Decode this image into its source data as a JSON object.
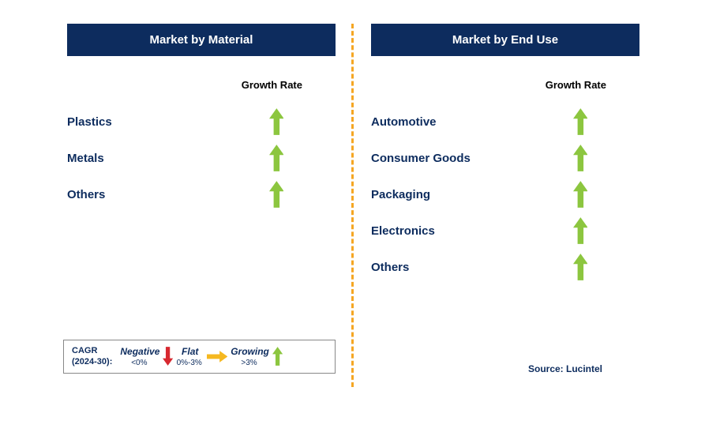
{
  "colors": {
    "header_bg": "#0d2c5e",
    "header_text": "#ffffff",
    "label_text": "#0d2c5e",
    "growth_arrow": "#8cc63f",
    "negative_arrow": "#d7282f",
    "flat_arrow": "#f5b820",
    "divider": "#f5a623",
    "legend_border": "#888888",
    "black": "#000000",
    "background": "#ffffff"
  },
  "left_panel": {
    "title": "Market by Material",
    "column_header": "Growth Rate",
    "items": [
      {
        "label": "Plastics",
        "growth": "growing"
      },
      {
        "label": "Metals",
        "growth": "growing"
      },
      {
        "label": "Others",
        "growth": "growing"
      }
    ]
  },
  "right_panel": {
    "title": "Market by End Use",
    "column_header": "Growth Rate",
    "items": [
      {
        "label": "Automotive",
        "growth": "growing"
      },
      {
        "label": "Consumer Goods",
        "growth": "growing"
      },
      {
        "label": "Packaging",
        "growth": "growing"
      },
      {
        "label": "Electronics",
        "growth": "growing"
      },
      {
        "label": "Others",
        "growth": "growing"
      }
    ]
  },
  "legend": {
    "cagr_line1": "CAGR",
    "cagr_line2": "(2024-30):",
    "negative_label": "Negative",
    "negative_range": "<0%",
    "flat_label": "Flat",
    "flat_range": "0%-3%",
    "growing_label": "Growing",
    "growing_range": ">3%"
  },
  "source": "Source: Lucintel",
  "arrow_sizes": {
    "row_arrow_height": 34,
    "legend_arrow_height": 24
  }
}
